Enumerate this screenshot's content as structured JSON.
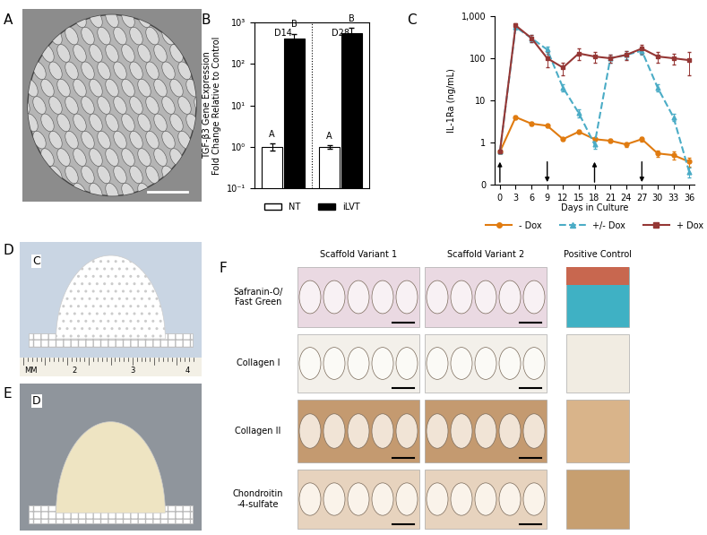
{
  "panel_labels": [
    "A",
    "B",
    "C",
    "D",
    "E",
    "F"
  ],
  "chart_data": [
    {
      "type": "bar",
      "ylabel": "TGF-β3 Gene Expression\nFold Change Relative to Control",
      "categories": [
        "D14",
        "D28"
      ],
      "series": [
        {
          "name": "NT",
          "color": "#ffffff",
          "values": [
            1,
            1
          ],
          "errors": [
            0.2,
            0.1
          ],
          "letters": [
            "A",
            "A"
          ]
        },
        {
          "name": "iLVT",
          "color": "#000000",
          "values": [
            400,
            550
          ],
          "errors": [
            130,
            180
          ],
          "letters": [
            "B",
            "B"
          ]
        }
      ],
      "log": "y",
      "ylim": [
        0.1,
        1000
      ],
      "yticks": [
        {
          "value": 0.1,
          "label": "10⁻¹"
        },
        {
          "value": 1,
          "label": "10⁰"
        },
        {
          "value": 10,
          "label": "10¹"
        },
        {
          "value": 100,
          "label": "10²"
        },
        {
          "value": 1000,
          "label": "10³"
        }
      ],
      "tick_labels": "y",
      "legend": "bottom"
    },
    {
      "type": "line",
      "xlabel": "Days in Culture",
      "ylabel": "IL-1Ra (ng/mL)",
      "x": [
        0,
        3,
        6,
        9,
        12,
        15,
        18,
        21,
        24,
        27,
        30,
        33,
        36
      ],
      "xlim": [
        -1,
        37
      ],
      "xticks": [
        0,
        3,
        6,
        9,
        12,
        15,
        18,
        21,
        24,
        27,
        30,
        33,
        36
      ],
      "log": "y",
      "ylim": [
        0.1,
        1000
      ],
      "yticks": [
        {
          "value": 0.1,
          "label": "0"
        },
        1,
        10,
        100,
        {
          "value": 1000,
          "label": "1,000"
        }
      ],
      "legend": "bottom",
      "series": [
        {
          "name": "- Dox",
          "color": "#e07b10",
          "marker": "circle",
          "line_style": "solid",
          "values": [
            0.6,
            4,
            2.8,
            2.5,
            1.2,
            1.8,
            1.2,
            1.1,
            0.9,
            1.2,
            0.55,
            0.5,
            0.35
          ],
          "errors": [
            0.05,
            0.4,
            0.3,
            0.2,
            0.1,
            0.2,
            0.1,
            0.1,
            0.1,
            0.15,
            0.1,
            0.1,
            0.08
          ]
        },
        {
          "name": "+/- Dox",
          "color": "#4bacc6",
          "marker": "triangle",
          "line_style": "dashed",
          "values": [
            0.6,
            550,
            300,
            160,
            20,
            5,
            0.9,
            100,
            120,
            150,
            20,
            4,
            0.2
          ],
          "errors": [
            0.05,
            80,
            60,
            30,
            4,
            1,
            0.2,
            20,
            25,
            30,
            4,
            0.8,
            0.05
          ]
        },
        {
          "name": "+ Dox",
          "color": "#953735",
          "marker": "square",
          "line_style": "solid",
          "values": [
            0.6,
            600,
            300,
            100,
            60,
            130,
            110,
            100,
            120,
            170,
            110,
            100,
            90
          ],
          "errors": [
            0.05,
            90,
            60,
            40,
            20,
            40,
            30,
            20,
            30,
            40,
            30,
            30,
            50
          ]
        }
      ],
      "arrows": [
        {
          "x": 0,
          "direction": "up"
        },
        {
          "x": 9,
          "direction": "down"
        },
        {
          "x": 18,
          "direction": "up"
        },
        {
          "x": 27,
          "direction": "down"
        }
      ]
    }
  ],
  "photos": {
    "D": {
      "label": "C",
      "ruler": [
        "MM",
        "2",
        "3",
        "4"
      ]
    },
    "E": {
      "label": "D"
    }
  },
  "histology": {
    "columns": [
      "Scaffold Variant 1",
      "Scaffold Variant 2",
      "Positive Control"
    ],
    "rows": [
      "Safranin-O/\nFast Green",
      "Collagen I",
      "Collagen II",
      "Chondroitin\n-4-sulfate"
    ]
  }
}
